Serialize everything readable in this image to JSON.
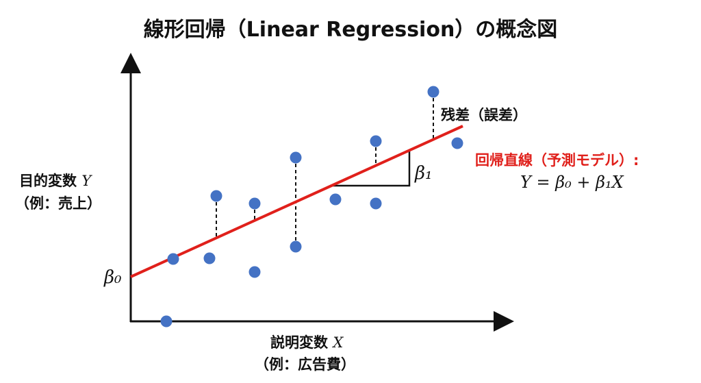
{
  "title": "線形回帰（Linear Regression）の概念図",
  "y_axis": {
    "label": "目的変数",
    "symbol": "Y",
    "example": "（例：売上）"
  },
  "x_axis": {
    "label": "説明変数",
    "symbol": "X",
    "example": "（例：広告費）"
  },
  "intercept_label": "β₀",
  "slope_label": "β₁",
  "residual_label": "残差（誤差）",
  "model_label": "回帰直線（予測モデル）:",
  "equation": "Y = β₀ + β₁X",
  "colors": {
    "points": "#4472C4",
    "line": "#E0201B",
    "axis": "#111111"
  },
  "chart_data": {
    "type": "scatter",
    "regression_line": {
      "intercept": 0,
      "slope": 0.4536
    },
    "points": [
      [
        52,
        -65
      ],
      [
        62,
        26
      ],
      [
        115,
        27
      ],
      [
        125,
        118
      ],
      [
        181,
        107
      ],
      [
        181,
        7
      ],
      [
        241,
        174
      ],
      [
        241,
        44
      ],
      [
        299,
        113
      ],
      [
        358,
        198
      ],
      [
        358,
        107
      ],
      [
        442,
        270
      ],
      [
        477,
        195
      ]
    ],
    "residual_points": [
      1,
      3,
      4,
      6,
      7,
      9,
      11
    ]
  }
}
